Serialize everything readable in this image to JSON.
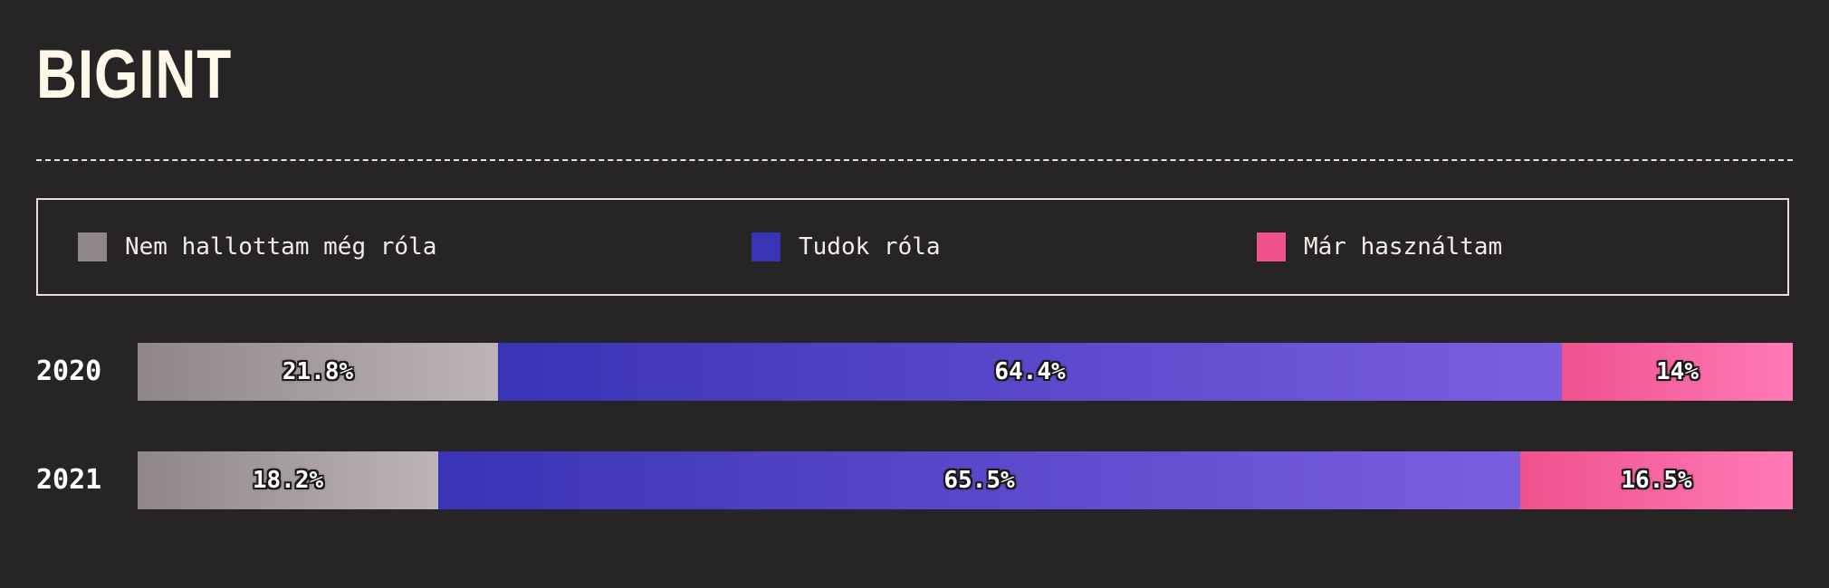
{
  "title": "BIGINT",
  "colors": {
    "background": "#272426",
    "title": "#fff8e8"
  },
  "legend": [
    {
      "label": "Nem hallottam még róla",
      "color": "#8e868b"
    },
    {
      "label": "Tudok róla",
      "color": "#3933b5"
    },
    {
      "label": "Már használtam",
      "color": "#ef528d"
    }
  ],
  "chart_data": {
    "type": "bar",
    "orientation": "horizontal",
    "stacked": true,
    "normalized": true,
    "categories": [
      "2020",
      "2021"
    ],
    "series": [
      {
        "name": "Nem hallottam még róla",
        "values": [
          21.8,
          18.2
        ],
        "labels": [
          "21.8%",
          "18.2%"
        ],
        "gradient": [
          "#8e868b",
          "#bcb4b8"
        ]
      },
      {
        "name": "Tudok róla",
        "values": [
          64.4,
          65.5
        ],
        "labels": [
          "64.4%",
          "65.5%"
        ],
        "gradient": [
          "#3933b5",
          "#7b5ee0"
        ]
      },
      {
        "name": "Már használtam",
        "values": [
          14,
          16.5
        ],
        "labels": [
          "14%",
          "16.5%"
        ],
        "gradient": [
          "#ef528d",
          "#ff7ab6"
        ]
      }
    ],
    "xlim": [
      0,
      100
    ],
    "grid": false,
    "legend_position": "top"
  }
}
